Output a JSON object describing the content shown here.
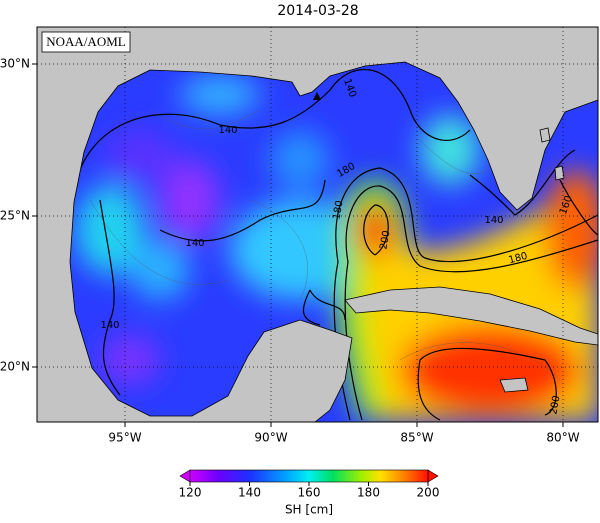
{
  "title": "2014-03-28",
  "credit": "NOAA/AOML",
  "x_axis": {
    "tick_labels": [
      "95°W",
      "90°W",
      "85°W",
      "80°W"
    ]
  },
  "y_axis": {
    "tick_labels": [
      "30°N",
      "25°N",
      "20°N"
    ]
  },
  "contour_labels": [
    "140",
    "140",
    "140",
    "140",
    "180",
    "180",
    "200",
    "140",
    "160",
    "180",
    "200"
  ],
  "colorbar": {
    "ticks": [
      120,
      140,
      160,
      180,
      200
    ],
    "label": "SH [cm]"
  }
}
